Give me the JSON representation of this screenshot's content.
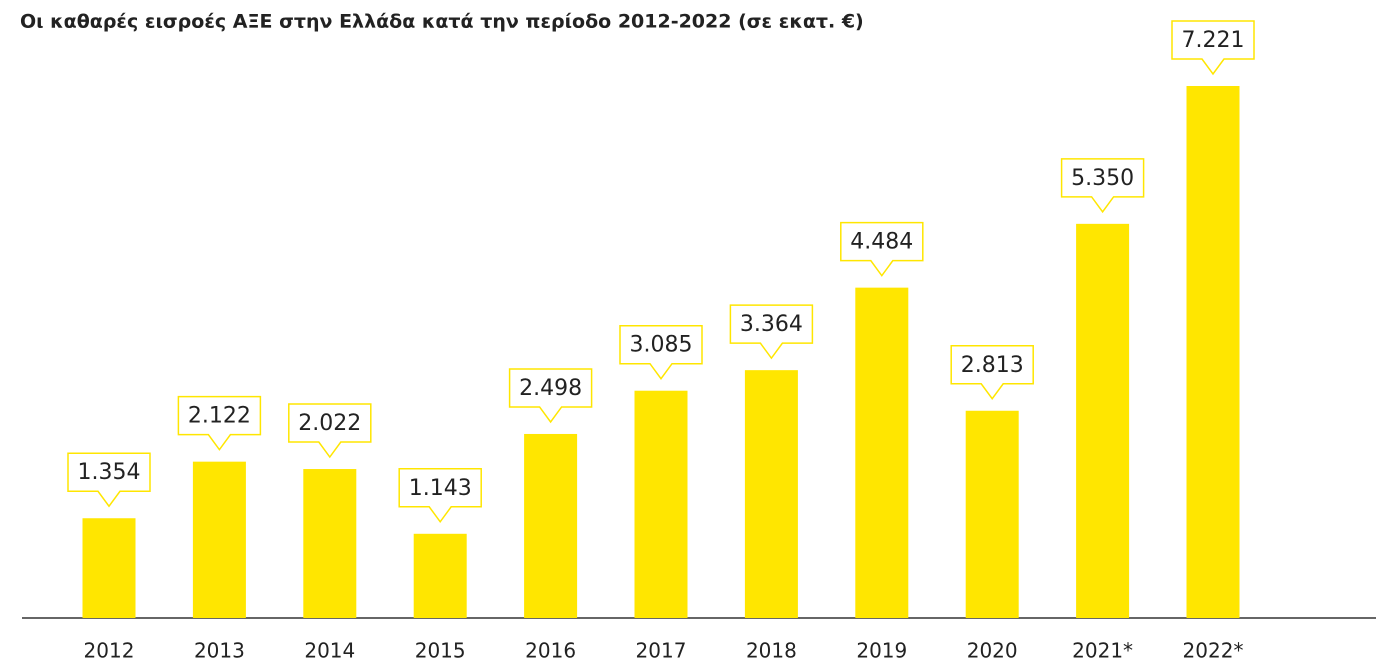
{
  "chart_data": {
    "type": "bar",
    "title": "Οι καθαρές εισροές ΑΞΕ στην Ελλάδα κατά την περίοδο 2012-2022 (σε εκατ. €)",
    "categories": [
      "2012",
      "2013",
      "2014",
      "2015",
      "2016",
      "2017",
      "2018",
      "2019",
      "2020",
      "2021*",
      "2022*"
    ],
    "values": [
      1354,
      2122,
      2022,
      1143,
      2498,
      3085,
      3364,
      4484,
      2813,
      5350,
      7221
    ],
    "value_labels": [
      "1.354",
      "2.122",
      "2.022",
      "1.143",
      "2.498",
      "3.085",
      "3.364",
      "4.484",
      "2.813",
      "5.350",
      "7.221"
    ],
    "color": "#ffe600"
  }
}
